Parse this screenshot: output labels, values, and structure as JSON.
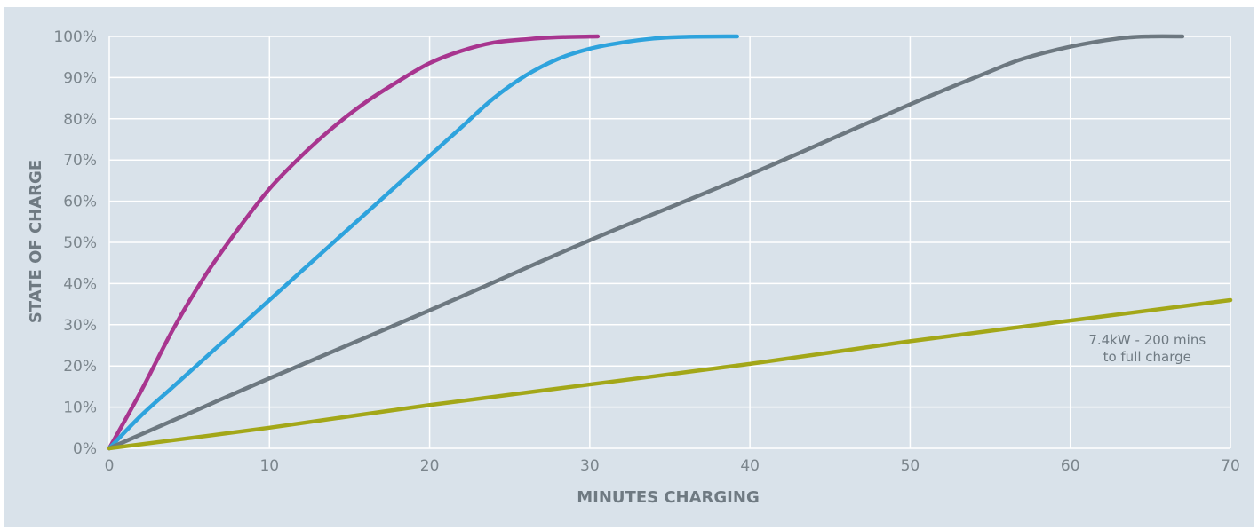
{
  "chart_data": {
    "type": "line",
    "title": "",
    "xlabel": "MINUTES CHARGING",
    "ylabel": "STATE OF CHARGE",
    "xlim": [
      0,
      70
    ],
    "ylim": [
      0,
      100
    ],
    "x_ticks": [
      0,
      10,
      20,
      30,
      40,
      50,
      60,
      70
    ],
    "y_ticks": [
      0,
      10,
      20,
      30,
      40,
      50,
      60,
      70,
      80,
      90,
      100
    ],
    "y_tick_suffix": "%",
    "grid": true,
    "annotations": [
      {
        "lines": [
          "7.4kW - 200 mins",
          "to full charge"
        ],
        "x": 64.8,
        "y": 25.2
      }
    ],
    "series": [
      {
        "color": "#a8358f",
        "points": [
          [
            0,
            0
          ],
          [
            2,
            14
          ],
          [
            4,
            29
          ],
          [
            6,
            42
          ],
          [
            8,
            53
          ],
          [
            10,
            63
          ],
          [
            12,
            71
          ],
          [
            14,
            78
          ],
          [
            16,
            84
          ],
          [
            18,
            89
          ],
          [
            20,
            93.5
          ],
          [
            22,
            96.5
          ],
          [
            24,
            98.5
          ],
          [
            26,
            99.3
          ],
          [
            28,
            99.8
          ],
          [
            30.5,
            100
          ]
        ]
      },
      {
        "color": "#2ea3dd",
        "points": [
          [
            0,
            0
          ],
          [
            2,
            8
          ],
          [
            4,
            15
          ],
          [
            6,
            22
          ],
          [
            8,
            29
          ],
          [
            10,
            36
          ],
          [
            12,
            43
          ],
          [
            14,
            50
          ],
          [
            16,
            57
          ],
          [
            18,
            64
          ],
          [
            20,
            71
          ],
          [
            22,
            78
          ],
          [
            24,
            85
          ],
          [
            26,
            90.5
          ],
          [
            28,
            94.5
          ],
          [
            30,
            97
          ],
          [
            32,
            98.5
          ],
          [
            34,
            99.5
          ],
          [
            36,
            99.9
          ],
          [
            39.2,
            100
          ]
        ]
      },
      {
        "color": "#6d7880",
        "points": [
          [
            0,
            0
          ],
          [
            5,
            8.5
          ],
          [
            10,
            17
          ],
          [
            20,
            33.5
          ],
          [
            30,
            50.5
          ],
          [
            40,
            66.5
          ],
          [
            50,
            83.5
          ],
          [
            55,
            91.5
          ],
          [
            57,
            94.5
          ],
          [
            60,
            97.5
          ],
          [
            63,
            99.5
          ],
          [
            65,
            100
          ],
          [
            67,
            100
          ]
        ]
      },
      {
        "color": "#a3a718",
        "points": [
          [
            0,
            0
          ],
          [
            10,
            5
          ],
          [
            20,
            10.5
          ],
          [
            30,
            15.5
          ],
          [
            40,
            20.5
          ],
          [
            50,
            26
          ],
          [
            60,
            31
          ],
          [
            70,
            36
          ]
        ]
      }
    ]
  }
}
